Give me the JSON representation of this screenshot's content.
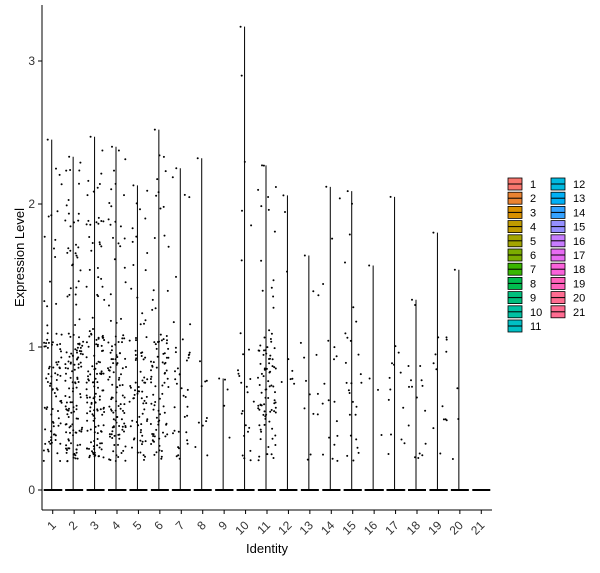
{
  "chart_data": {
    "type": "violin",
    "title": "",
    "xlabel": "Identity",
    "ylabel": "Expression Level",
    "categories": [
      "1",
      "2",
      "3",
      "4",
      "5",
      "6",
      "7",
      "8",
      "9",
      "10",
      "11",
      "12",
      "13",
      "14",
      "15",
      "16",
      "17",
      "18",
      "19",
      "20",
      "21"
    ],
    "ylim": [
      -0.2,
      3.4
    ],
    "yticks": [
      0,
      1,
      2,
      3
    ],
    "max_values": [
      2.45,
      2.33,
      2.47,
      2.4,
      2.13,
      2.52,
      2.25,
      2.32,
      0.78,
      3.24,
      2.27,
      2.06,
      1.64,
      2.12,
      2.09,
      1.57,
      2.05,
      1.33,
      1.8,
      1.54,
      0.0
    ],
    "nonzero_fraction": [
      0.35,
      0.55,
      0.55,
      0.45,
      0.3,
      0.35,
      0.15,
      0.04,
      0.015,
      0.1,
      0.35,
      0.03,
      0.05,
      0.07,
      0.1,
      0.01,
      0.05,
      0.06,
      0.05,
      0.01,
      0.0
    ],
    "legend": {
      "position": "right",
      "columns": 2,
      "labels": [
        "1",
        "2",
        "3",
        "4",
        "5",
        "6",
        "7",
        "8",
        "9",
        "10",
        "11",
        "12",
        "13",
        "14",
        "15",
        "16",
        "17",
        "18",
        "19",
        "20",
        "21"
      ],
      "colors": [
        "#F8766D",
        "#EA8331",
        "#D89000",
        "#C09B00",
        "#A3A500",
        "#7CAE00",
        "#39B600",
        "#00BB4E",
        "#00BF7D",
        "#00C1A3",
        "#00BFC4",
        "#00BAE0",
        "#00B0F6",
        "#35A2FF",
        "#9590FF",
        "#C77CFF",
        "#E76BF3",
        "#FA62DB",
        "#FF62BC",
        "#FF6C91",
        "#FF6C91"
      ]
    },
    "grid": false,
    "points": "jittered single-cell expression values"
  }
}
